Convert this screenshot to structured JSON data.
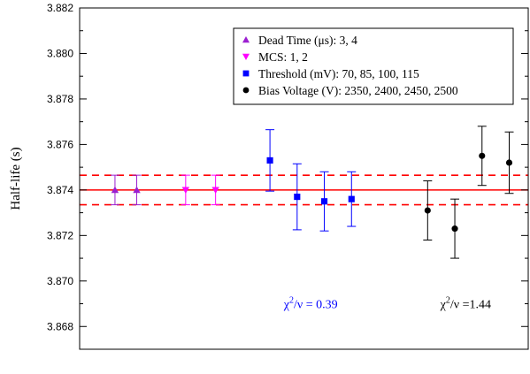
{
  "chart_data": {
    "type": "scatter",
    "ylabel": "Half-life (s)",
    "xlabel": "",
    "ylim": [
      3.867,
      3.882
    ],
    "xlim": [
      0,
      16.5
    ],
    "y_ticks": [
      3.868,
      3.87,
      3.872,
      3.874,
      3.876,
      3.878,
      3.88,
      3.882
    ],
    "y_tick_labels": [
      "3.868",
      "3.870",
      "3.872",
      "3.874",
      "3.876",
      "3.878",
      "3.880",
      "3.882"
    ],
    "grid": false,
    "legend_position": "top-right",
    "series": [
      {
        "name": "Dead Time (μs): 3, 4",
        "marker": "triangle-up",
        "color": "#9b1fd0",
        "points": [
          {
            "x": 1.3,
            "y": 3.874,
            "err": 0.00065
          },
          {
            "x": 2.1,
            "y": 3.874,
            "err": 0.00065
          }
        ]
      },
      {
        "name": "MCS: 1, 2",
        "marker": "triangle-down",
        "color": "#ff00ff",
        "points": [
          {
            "x": 3.9,
            "y": 3.874,
            "err": 0.00065
          },
          {
            "x": 5.0,
            "y": 3.874,
            "err": 0.00065
          }
        ]
      },
      {
        "name": "Threshold (mV): 70, 85, 100, 115",
        "marker": "square",
        "color": "#0000ff",
        "points": [
          {
            "x": 7.0,
            "y": 3.8753,
            "err": 0.00135
          },
          {
            "x": 8.0,
            "y": 3.8737,
            "err": 0.00145
          },
          {
            "x": 9.0,
            "y": 3.8735,
            "err": 0.0013
          },
          {
            "x": 10.0,
            "y": 3.8736,
            "err": 0.0012
          }
        ]
      },
      {
        "name": "Bias Voltage (V): 2350, 2400, 2450, 2500",
        "marker": "circle",
        "color": "#000000",
        "points": [
          {
            "x": 12.8,
            "y": 3.8731,
            "err": 0.0013
          },
          {
            "x": 13.8,
            "y": 3.8723,
            "err": 0.0013
          },
          {
            "x": 14.8,
            "y": 3.8755,
            "err": 0.0013
          },
          {
            "x": 15.8,
            "y": 3.8752,
            "err": 0.00135
          }
        ]
      }
    ],
    "reference_lines": {
      "mean": 3.874,
      "upper": 3.87465,
      "lower": 3.87335,
      "color": "#ff0000"
    },
    "annotations": [
      {
        "sym": "χ",
        "sup": "2",
        "rest": "/ν = 0.39",
        "color": "#0000ff",
        "x": 8.5,
        "y": 3.8688
      },
      {
        "sym": "χ",
        "sup": "2",
        "rest": "/ν =1.44",
        "color": "#000000",
        "x": 14.2,
        "y": 3.8688
      }
    ]
  }
}
